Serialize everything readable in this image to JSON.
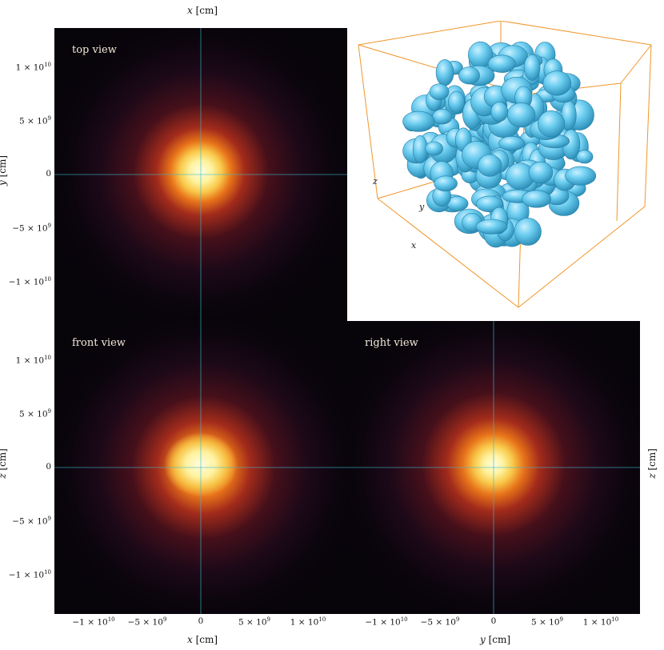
{
  "colors": {
    "background": "#07040a",
    "crosshair": "#3fb8c8",
    "core_bright": "#fff7b0",
    "core_orange": "#f08a1c",
    "halo_red": "#8a1a1e",
    "halo_purple": "#3a1030",
    "bubbles": "#5cc8ee",
    "box_edges": "#f0962a"
  },
  "panels": {
    "top": {
      "label": "top view"
    },
    "front": {
      "label": "front view"
    },
    "right": {
      "label": "right view"
    }
  },
  "axes": {
    "top_x_title_var": "x",
    "top_x_title_unit": " [cm]",
    "bottom_left_x_var": "x",
    "bottom_left_x_unit": " [cm]",
    "bottom_right_x_var": "y",
    "bottom_right_x_unit": " [cm]",
    "top_y_var": "y",
    "top_y_unit": " [cm]",
    "front_y_var": "z",
    "front_y_unit": " [cm]",
    "right_y_var": "z",
    "right_y_unit": " [cm]",
    "tick_labels": [
      "−1 × 10",
      "−5 × 10",
      "0",
      "5 × 10",
      "1 × 10"
    ],
    "tick_exponents": [
      "10",
      "9",
      "",
      "9",
      "10"
    ],
    "vertical_tick_labels": [
      "1 × 10",
      "5 × 10",
      "0",
      "−5 × 10",
      "−1 × 10"
    ],
    "vertical_tick_exponents": [
      "10",
      "9",
      "",
      "9",
      "10"
    ]
  },
  "box_axes": {
    "z": "z",
    "y": "y",
    "x": "x"
  }
}
